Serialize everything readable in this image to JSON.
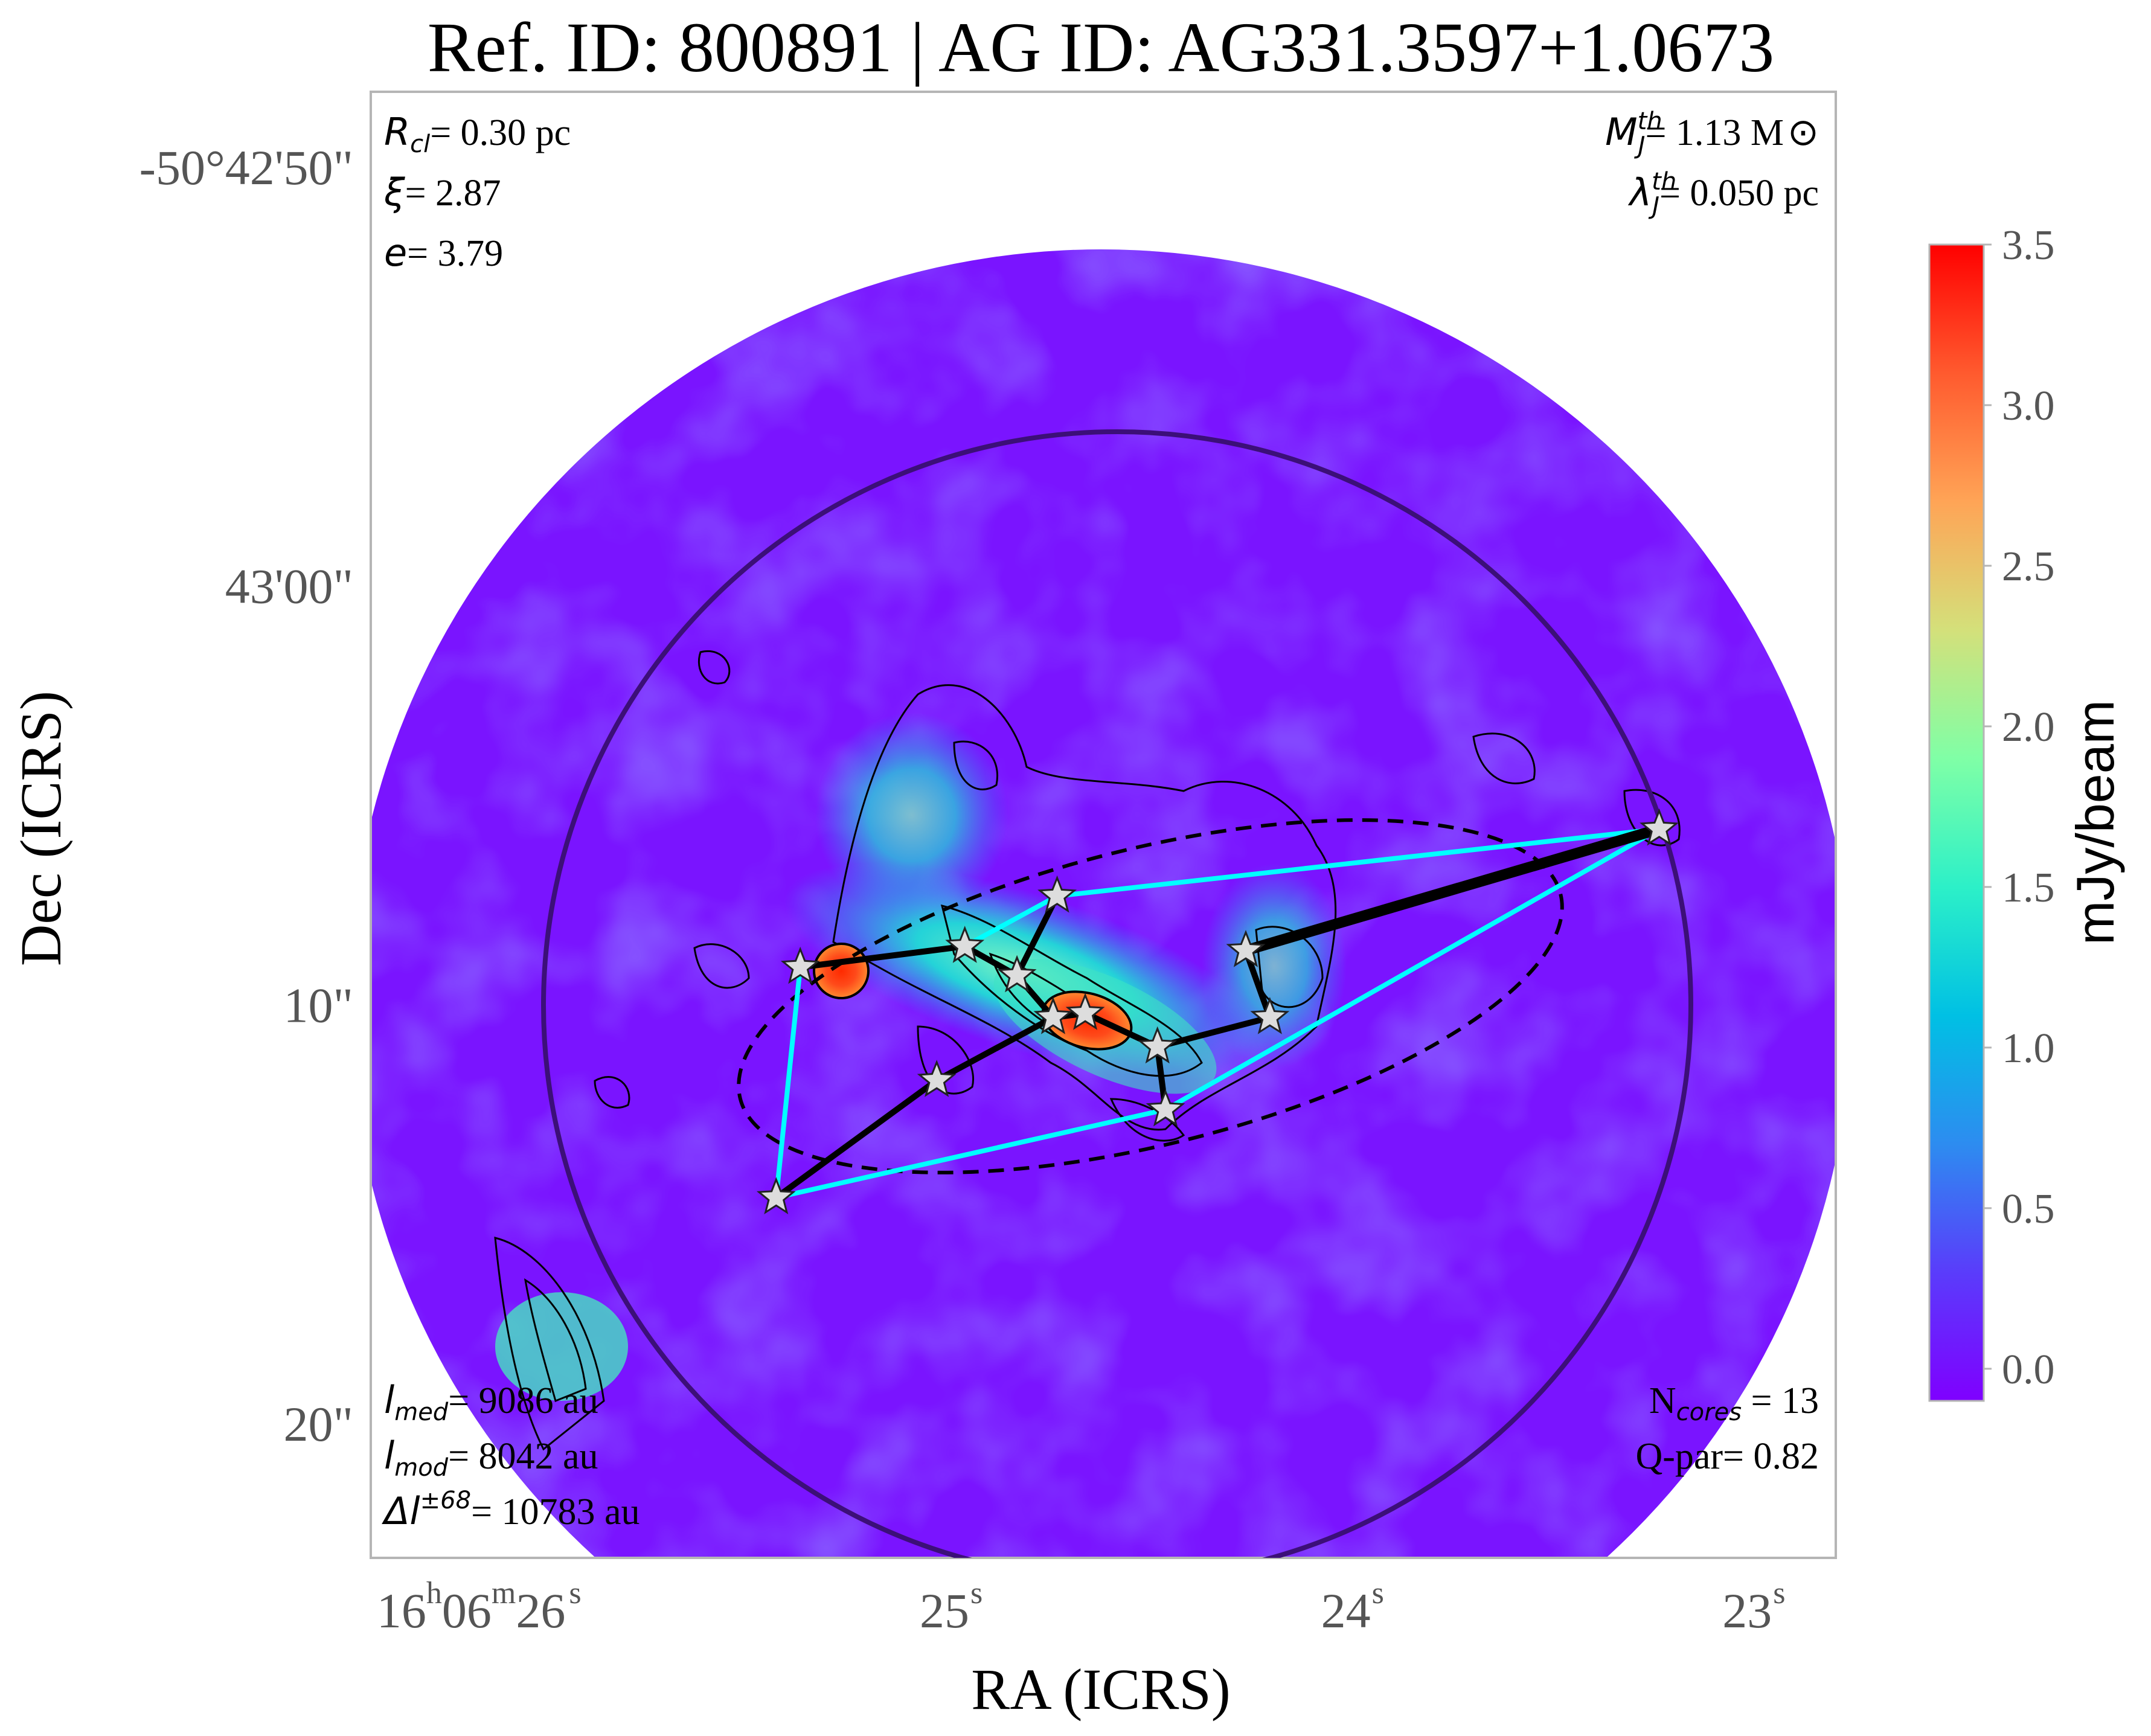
{
  "title": "Ref. ID: 800891 | AG ID: AG331.3597+1.0673",
  "chart_data": {
    "type": "scatter",
    "description_type": "image map with core positions, minimum spanning tree and convex hull",
    "title": "Ref. ID: 800891 | AG ID: AG331.3597+1.0673",
    "xlabel": "RA (ICRS)",
    "ylabel": "Dec (ICRS)",
    "x_ticks": [
      {
        "label": "16",
        "sup1": "h",
        "mid": "06",
        "sup2": "m",
        "end": "26",
        "sup3": "s",
        "ra_sec": 26
      },
      {
        "label": "25",
        "sup3": "s",
        "ra_sec": 25
      },
      {
        "label": "24",
        "sup3": "s",
        "ra_sec": 24
      },
      {
        "label": "23",
        "sup3": "s",
        "ra_sec": 23
      }
    ],
    "y_ticks": [
      {
        "label": "-50°42'50\"",
        "dec_arcsec": -50
      },
      {
        "label": "43'00\"",
        "dec_arcsec": -60
      },
      {
        "label": "10\"",
        "dec_arcsec": -70
      },
      {
        "label": "20\"",
        "dec_arcsec": -80
      }
    ],
    "xlim_ra_sec": [
      26.5,
      22.85
    ],
    "ylim_dec_arcsec": [
      -48.2,
      -83.2
    ],
    "colorbar": {
      "label": "mJy/beam",
      "range": [
        -0.1,
        3.5
      ],
      "ticks": [
        "0.0",
        "0.5",
        "1.0",
        "1.5",
        "2.0",
        "2.5",
        "3.0",
        "3.5"
      ],
      "colormap": "rainbow",
      "stops": [
        "#7f00ff",
        "#5a3cfb",
        "#2d8cf0",
        "#00c0e4",
        "#2cf0c8",
        "#80ffa6",
        "#d4e07a",
        "#ffa456",
        "#ff5a2e",
        "#ff0000"
      ]
    },
    "cores": [
      {
        "ra_sec": 25.43,
        "dec_arcsec": -69.1
      },
      {
        "ra_sec": 25.02,
        "dec_arcsec": -68.6
      },
      {
        "ra_sec": 24.79,
        "dec_arcsec": -67.4
      },
      {
        "ra_sec": 24.89,
        "dec_arcsec": -69.3
      },
      {
        "ra_sec": 24.8,
        "dec_arcsec": -70.3
      },
      {
        "ra_sec": 24.72,
        "dec_arcsec": -70.2
      },
      {
        "ra_sec": 24.54,
        "dec_arcsec": -71.0
      },
      {
        "ra_sec": 24.32,
        "dec_arcsec": -68.7
      },
      {
        "ra_sec": 24.26,
        "dec_arcsec": -70.3
      },
      {
        "ra_sec": 24.52,
        "dec_arcsec": -72.5
      },
      {
        "ra_sec": 25.09,
        "dec_arcsec": -71.8
      },
      {
        "ra_sec": 25.49,
        "dec_arcsec": -74.6
      },
      {
        "ra_sec": 23.29,
        "dec_arcsec": -65.8
      }
    ],
    "mst_edges": [
      [
        0,
        1
      ],
      [
        1,
        3
      ],
      [
        3,
        2
      ],
      [
        3,
        4
      ],
      [
        4,
        5
      ],
      [
        5,
        6
      ],
      [
        6,
        9
      ],
      [
        6,
        8
      ],
      [
        8,
        7
      ],
      [
        7,
        12
      ],
      [
        4,
        10
      ],
      [
        10,
        11
      ]
    ],
    "hull": [
      0,
      11,
      9,
      12,
      2,
      1,
      0
    ],
    "annotations": {
      "top_left": {
        "r_cl": "= 0.30 pc",
        "xi": "= 2.87",
        "e": "= 3.79"
      },
      "top_right": {
        "mj": "= 1.13 M",
        "lambda": "= 0.050 pc"
      },
      "bottom_left": {
        "l_med": "= 9086 au",
        "l_mod": "= 8042 au",
        "dl": "= 10783 au"
      },
      "bottom_right": {
        "ncores": " = 13",
        "qpar": "Q-par= 0.82"
      }
    },
    "colors": {
      "hull": "#00ffff",
      "mst": "#000000",
      "large_circle": "#3c0f78",
      "ellipse": "#000000",
      "star_fill": "#dddddd"
    }
  }
}
